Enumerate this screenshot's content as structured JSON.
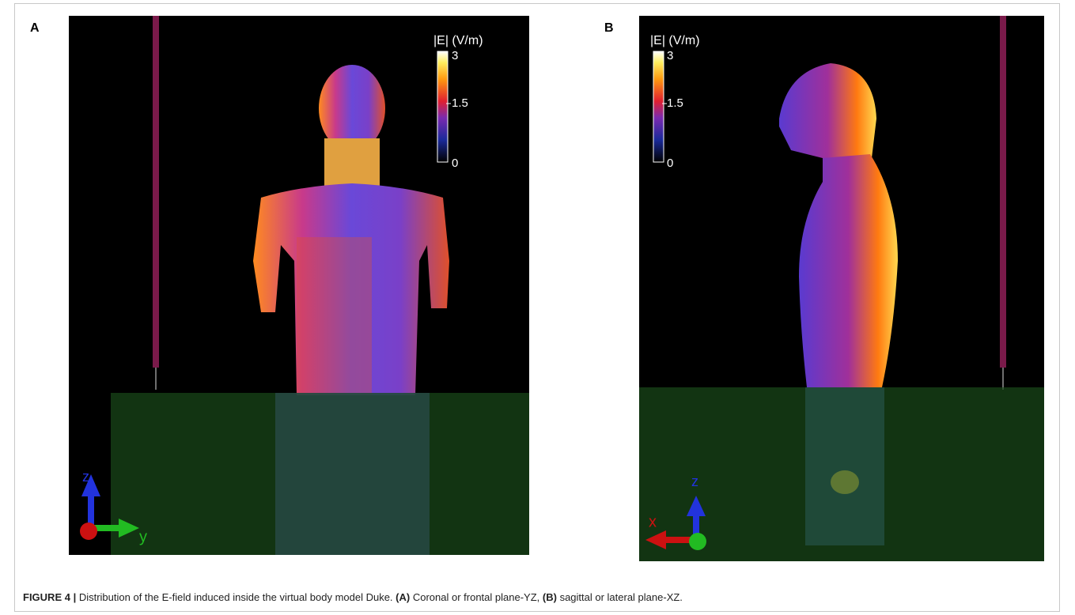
{
  "panels": [
    {
      "label": "A",
      "colorbar": {
        "title": "|E| (V/m)",
        "ticks": [
          3,
          1.5,
          0
        ]
      },
      "axes": [
        "z",
        "y"
      ]
    },
    {
      "label": "B",
      "colorbar": {
        "title": "|E| (V/m)",
        "ticks": [
          3,
          1.5,
          0
        ]
      },
      "axes": [
        "z",
        "x"
      ]
    }
  ],
  "caption": {
    "label": "FIGURE 4 |",
    "text": "Distribution of the E-field induced inside the virtual body model Duke.",
    "parts": [
      "(A)",
      "Coronal or frontal plane-YZ,",
      "(B)",
      "sagittal or lateral plane-XZ."
    ]
  }
}
